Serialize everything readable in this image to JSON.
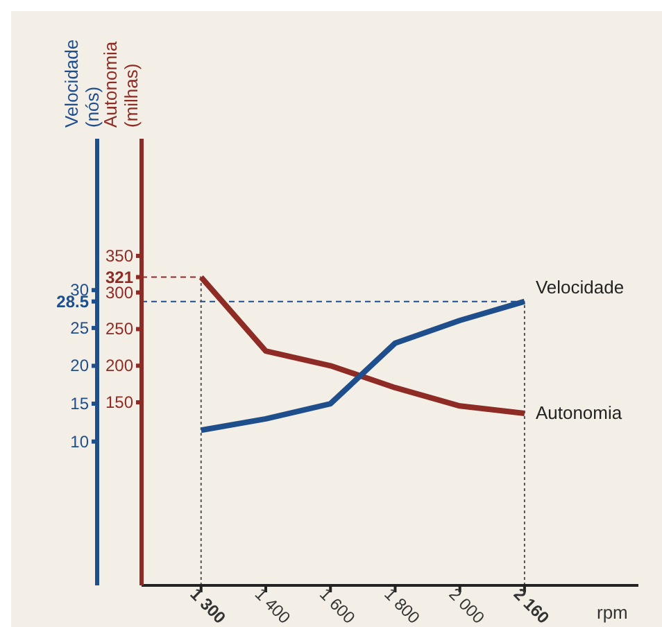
{
  "chart_data": {
    "type": "line",
    "xlabel": "rpm",
    "ylabel": "Autonomia (milhas)",
    "y2label": "Velocidade (nós)",
    "categories": [
      "1 300",
      "1 400",
      "1 600",
      "1 800",
      "2 000",
      "2 160"
    ],
    "series": [
      {
        "name": "Autonomia",
        "color": "#8e2b25",
        "values": [
          321,
          220,
          200,
          170,
          145,
          135
        ]
      },
      {
        "name": "Velocidade",
        "color": "#1f4e8c",
        "axis": "y2",
        "values": [
          11.5,
          13,
          15,
          23,
          26,
          28.5
        ]
      }
    ],
    "ylim": [
      -100,
      510
    ],
    "yticks": [
      150,
      200,
      250,
      300,
      321,
      350
    ],
    "y2lim": [
      -9,
      50
    ],
    "y2ticks": [
      10,
      15,
      20,
      25,
      28.5,
      30
    ],
    "ref_lines": [
      {
        "axis": "y",
        "value": 321,
        "color": "#8e2b25",
        "line_style": "dashed"
      },
      {
        "axis": "y2",
        "value": 28.5,
        "color": "#1f4e8c",
        "line_style": "dashed"
      },
      {
        "axis": "x",
        "value": "1 300",
        "color": "#555555",
        "line_style": "dotted"
      },
      {
        "axis": "x",
        "value": "2 160",
        "color": "#555555",
        "line_style": "dotted"
      }
    ],
    "marker": "none",
    "line_style": "solid"
  }
}
